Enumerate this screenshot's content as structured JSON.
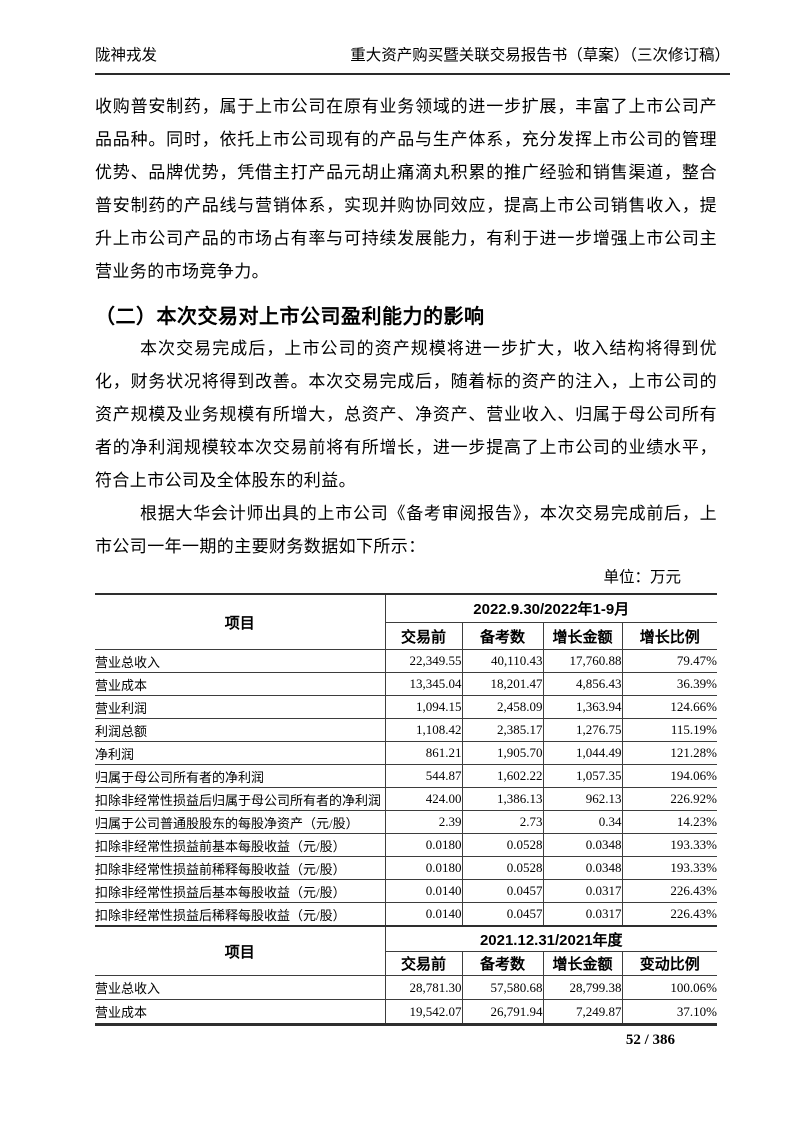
{
  "header": {
    "left": "陇神戎发",
    "right": "重大资产购买暨关联交易报告书（草案）（三次修订稿）"
  },
  "paragraphs": {
    "p1": "收购普安制药，属于上市公司在原有业务领域的进一步扩展，丰富了上市公司产品品种。同时，依托上市公司现有的产品与生产体系，充分发挥上市公司的管理优势、品牌优势，凭借主打产品元胡止痛滴丸积累的推广经验和销售渠道，整合普安制药的产品线与营销体系，实现并购协同效应，提高上市公司销售收入，提升上市公司产品的市场占有率与可持续发展能力，有利于进一步增强上市公司主营业务的市场竞争力。",
    "heading": "（二）本次交易对上市公司盈利能力的影响",
    "p2": "本次交易完成后，上市公司的资产规模将进一步扩大，收入结构将得到优化，财务状况将得到改善。本次交易完成后，随着标的资产的注入，上市公司的资产规模及业务规模有所增大，总资产、净资产、营业收入、归属于母公司所有者的净利润规模较本次交易前将有所增长，进一步提高了上市公司的业绩水平，符合上市公司及全体股东的利益。",
    "p3": "根据大华会计师出具的上市公司《备考审阅报告》，本次交易完成前后，上市公司一年一期的主要财务数据如下所示：",
    "unit": "单位：万元"
  },
  "table": {
    "item_header": "项目",
    "section1": {
      "period": "2022.9.30/2022年1-9月",
      "columns": [
        "交易前",
        "备考数",
        "增长金额",
        "增长比例"
      ],
      "rows": [
        {
          "label": "营业总收入",
          "values": [
            "22,349.55",
            "40,110.43",
            "17,760.88",
            "79.47%"
          ]
        },
        {
          "label": "营业成本",
          "values": [
            "13,345.04",
            "18,201.47",
            "4,856.43",
            "36.39%"
          ]
        },
        {
          "label": "营业利润",
          "values": [
            "1,094.15",
            "2,458.09",
            "1,363.94",
            "124.66%"
          ]
        },
        {
          "label": "利润总额",
          "values": [
            "1,108.42",
            "2,385.17",
            "1,276.75",
            "115.19%"
          ]
        },
        {
          "label": "净利润",
          "values": [
            "861.21",
            "1,905.70",
            "1,044.49",
            "121.28%"
          ]
        },
        {
          "label": "归属于母公司所有者的净利润",
          "values": [
            "544.87",
            "1,602.22",
            "1,057.35",
            "194.06%"
          ]
        },
        {
          "label": "扣除非经常性损益后归属于母公司所有者的净利润",
          "values": [
            "424.00",
            "1,386.13",
            "962.13",
            "226.92%"
          ]
        },
        {
          "label": "归属于公司普通股股东的每股净资产（元/股）",
          "values": [
            "2.39",
            "2.73",
            "0.34",
            "14.23%"
          ]
        },
        {
          "label": "扣除非经常性损益前基本每股收益（元/股）",
          "values": [
            "0.0180",
            "0.0528",
            "0.0348",
            "193.33%"
          ]
        },
        {
          "label": "扣除非经常性损益前稀释每股收益（元/股）",
          "values": [
            "0.0180",
            "0.0528",
            "0.0348",
            "193.33%"
          ]
        },
        {
          "label": "扣除非经常性损益后基本每股收益（元/股）",
          "values": [
            "0.0140",
            "0.0457",
            "0.0317",
            "226.43%"
          ]
        },
        {
          "label": "扣除非经常性损益后稀释每股收益（元/股）",
          "values": [
            "0.0140",
            "0.0457",
            "0.0317",
            "226.43%"
          ]
        }
      ]
    },
    "section2": {
      "period": "2021.12.31/2021年度",
      "columns": [
        "交易前",
        "备考数",
        "增长金额",
        "变动比例"
      ],
      "rows": [
        {
          "label": "营业总收入",
          "values": [
            "28,781.30",
            "57,580.68",
            "28,799.38",
            "100.06%"
          ]
        },
        {
          "label": "营业成本",
          "values": [
            "19,542.07",
            "26,791.94",
            "7,249.87",
            "37.10%"
          ]
        }
      ]
    }
  },
  "footer": {
    "page_number": "52 / 386"
  }
}
